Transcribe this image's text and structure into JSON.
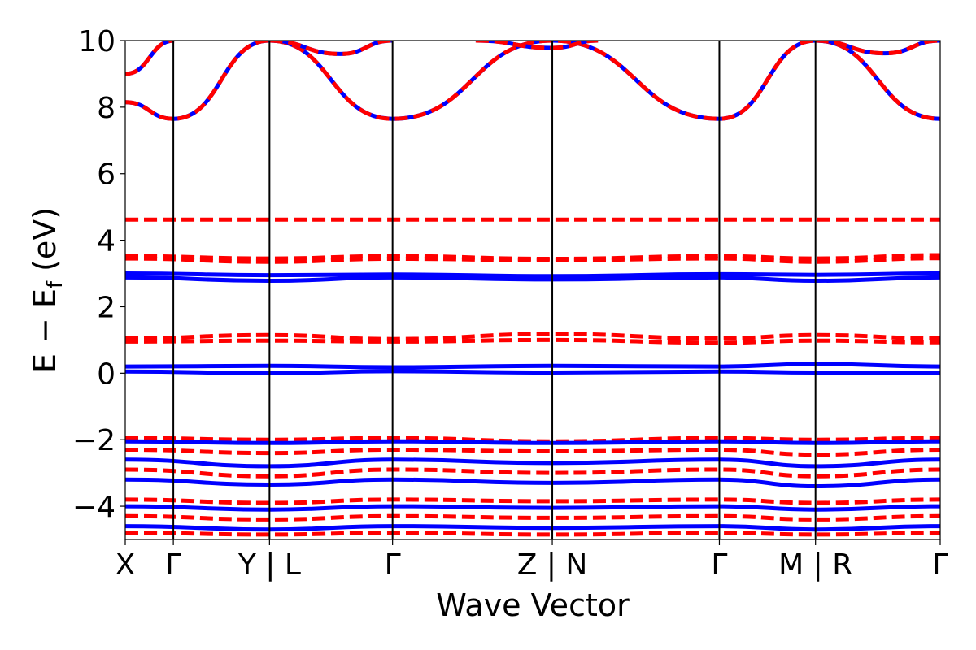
{
  "chart_data": {
    "type": "line",
    "xlabel": "Wave Vector",
    "ylabel": "E − E_f (eV)",
    "ylabel_parts": {
      "pre": "E − E",
      "sub": "f",
      "post": " (eV)"
    },
    "ylim": [
      -5,
      10
    ],
    "yticks": [
      {
        "value": -4,
        "label": "−4"
      },
      {
        "value": -2,
        "label": "−2"
      },
      {
        "value": 0,
        "label": "0"
      },
      {
        "value": 2,
        "label": "2"
      },
      {
        "value": 4,
        "label": "4"
      },
      {
        "value": 6,
        "label": "6"
      },
      {
        "value": 8,
        "label": "8"
      },
      {
        "value": 10,
        "label": "10"
      }
    ],
    "xlim": [
      0,
      1
    ],
    "kpath": [
      {
        "label": "X",
        "position": 0.0
      },
      {
        "label": "Γ",
        "position": 0.059
      },
      {
        "label": "Y | L",
        "position": 0.177
      },
      {
        "label": "Γ",
        "position": 0.328
      },
      {
        "label": "Z | N",
        "position": 0.524
      },
      {
        "label": "Γ",
        "position": 0.729
      },
      {
        "label": "M | R",
        "position": 0.847
      },
      {
        "label": "Γ",
        "position": 1.0
      }
    ],
    "grid": false,
    "legend": "none",
    "colors": {
      "blue_series": "#0000ff",
      "red_series": "#ff0000"
    },
    "series": [
      {
        "style": "solid",
        "color": "#0000ff",
        "x": [
          0,
          0.059,
          0.177,
          0.328,
          0.524,
          0.729,
          0.847,
          1.0
        ],
        "y": [
          8.15,
          7.65,
          10.0,
          7.65,
          10.0,
          7.65,
          10.0,
          7.65
        ]
      },
      {
        "style": "dashed",
        "color": "#ff0000",
        "x": [
          0,
          0.059,
          0.177,
          0.328,
          0.524,
          0.729,
          0.847,
          1.0
        ],
        "y": [
          8.15,
          7.65,
          10.0,
          7.65,
          10.0,
          7.65,
          10.0,
          7.65
        ]
      },
      {
        "style": "solid",
        "color": "#0000ff",
        "x": [
          0,
          0.06
        ],
        "y": [
          9.0,
          10.0
        ]
      },
      {
        "style": "dashed",
        "color": "#ff0000",
        "x": [
          0,
          0.06
        ],
        "y": [
          9.0,
          10.0
        ]
      },
      {
        "style": "solid",
        "color": "#0000ff",
        "x": [
          0.177,
          0.264,
          0.328
        ],
        "y": [
          10.0,
          9.6,
          10.0
        ]
      },
      {
        "style": "dashed",
        "color": "#ff0000",
        "x": [
          0.177,
          0.264,
          0.328
        ],
        "y": [
          10.0,
          9.6,
          10.0
        ]
      },
      {
        "style": "solid",
        "color": "#0000ff",
        "x": [
          0.43,
          0.524,
          0.58
        ],
        "y": [
          10.0,
          9.78,
          10.0
        ]
      },
      {
        "style": "dashed",
        "color": "#ff0000",
        "x": [
          0.43,
          0.524,
          0.58
        ],
        "y": [
          10.0,
          9.78,
          10.0
        ]
      },
      {
        "style": "solid",
        "color": "#0000ff",
        "x": [
          0.847,
          0.932,
          1.0
        ],
        "y": [
          10.0,
          9.62,
          10.0
        ]
      },
      {
        "style": "dashed",
        "color": "#ff0000",
        "x": [
          0.847,
          0.932,
          1.0
        ],
        "y": [
          10.0,
          9.62,
          10.0
        ]
      },
      {
        "style": "dashed",
        "color": "#ff0000",
        "x": [
          0,
          1.0
        ],
        "y": [
          4.62,
          4.62
        ]
      },
      {
        "style": "dashed",
        "color": "#ff0000",
        "x": [
          0,
          0.177,
          0.328,
          0.524,
          0.729,
          0.847,
          1.0
        ],
        "y": [
          3.52,
          3.45,
          3.52,
          3.44,
          3.52,
          3.45,
          3.55
        ]
      },
      {
        "style": "dashed",
        "color": "#ff0000",
        "x": [
          0,
          0.177,
          0.328,
          0.524,
          0.729,
          0.847,
          1.0
        ],
        "y": [
          3.45,
          3.35,
          3.44,
          3.4,
          3.45,
          3.35,
          3.46
        ]
      },
      {
        "style": "solid",
        "color": "#0000ff",
        "x": [
          0,
          0.177,
          0.328,
          0.524,
          0.729,
          0.847,
          1.0
        ],
        "y": [
          3.0,
          2.95,
          2.97,
          2.92,
          2.98,
          2.96,
          3.0
        ]
      },
      {
        "style": "solid",
        "color": "#0000ff",
        "x": [
          0,
          0.177,
          0.328,
          0.524,
          0.729,
          0.847,
          1.0
        ],
        "y": [
          2.88,
          2.78,
          2.88,
          2.82,
          2.88,
          2.78,
          2.88
        ]
      },
      {
        "style": "dashed",
        "color": "#ff0000",
        "x": [
          0,
          0.177,
          0.328,
          0.524,
          0.729,
          0.847,
          1.0
        ],
        "y": [
          1.05,
          1.15,
          1.03,
          1.18,
          1.05,
          1.15,
          1.05
        ]
      },
      {
        "style": "dashed",
        "color": "#ff0000",
        "x": [
          0,
          0.177,
          0.328,
          0.524,
          0.729,
          0.847,
          1.0
        ],
        "y": [
          0.95,
          0.98,
          0.95,
          1.0,
          0.92,
          0.98,
          0.93
        ]
      },
      {
        "style": "solid",
        "color": "#0000ff",
        "x": [
          0,
          0.177,
          0.328,
          0.524,
          0.729,
          0.847,
          1.0
        ],
        "y": [
          0.2,
          0.22,
          0.18,
          0.22,
          0.2,
          0.28,
          0.2
        ]
      },
      {
        "style": "solid",
        "color": "#0000ff",
        "x": [
          0,
          0.177,
          0.328,
          0.524,
          0.729,
          0.847,
          1.0
        ],
        "y": [
          0.05,
          0.0,
          0.06,
          0.02,
          0.05,
          0.02,
          0.0
        ]
      },
      {
        "style": "dashed",
        "color": "#ff0000",
        "x": [
          0,
          0.177,
          0.328,
          0.524,
          0.729,
          0.847,
          1.0
        ],
        "y": [
          -1.95,
          -2.0,
          -1.95,
          -2.05,
          -1.95,
          -2.0,
          -1.95
        ]
      },
      {
        "style": "solid",
        "color": "#0000ff",
        "x": [
          0,
          0.177,
          0.328,
          0.524,
          0.729,
          0.847,
          1.0
        ],
        "y": [
          -2.05,
          -2.1,
          -2.05,
          -2.1,
          -2.05,
          -2.1,
          -2.05
        ]
      },
      {
        "style": "dashed",
        "color": "#ff0000",
        "x": [
          0,
          0.177,
          0.328,
          0.524,
          0.729,
          0.847,
          1.0
        ],
        "y": [
          -2.3,
          -2.4,
          -2.3,
          -2.35,
          -2.3,
          -2.45,
          -2.3
        ]
      },
      {
        "style": "solid",
        "color": "#0000ff",
        "x": [
          0,
          0.177,
          0.328,
          0.524,
          0.729,
          0.847,
          1.0
        ],
        "y": [
          -2.6,
          -2.8,
          -2.6,
          -2.7,
          -2.6,
          -2.8,
          -2.6
        ]
      },
      {
        "style": "dashed",
        "color": "#ff0000",
        "x": [
          0,
          0.177,
          0.328,
          0.524,
          0.729,
          0.847,
          1.0
        ],
        "y": [
          -2.9,
          -3.1,
          -2.9,
          -3.0,
          -2.9,
          -3.1,
          -2.9
        ]
      },
      {
        "style": "solid",
        "color": "#0000ff",
        "x": [
          0,
          0.177,
          0.328,
          0.524,
          0.729,
          0.847,
          1.0
        ],
        "y": [
          -3.2,
          -3.35,
          -3.2,
          -3.3,
          -3.2,
          -3.4,
          -3.2
        ]
      },
      {
        "style": "dashed",
        "color": "#ff0000",
        "x": [
          0,
          0.177,
          0.328,
          0.524,
          0.729,
          0.847,
          1.0
        ],
        "y": [
          -3.8,
          -3.9,
          -3.8,
          -3.85,
          -3.8,
          -3.9,
          -3.8
        ]
      },
      {
        "style": "solid",
        "color": "#0000ff",
        "x": [
          0,
          0.177,
          0.328,
          0.524,
          0.729,
          0.847,
          1.0
        ],
        "y": [
          -4.0,
          -4.1,
          -4.0,
          -4.05,
          -4.0,
          -4.1,
          -4.0
        ]
      },
      {
        "style": "dashed",
        "color": "#ff0000",
        "x": [
          0,
          0.177,
          0.328,
          0.524,
          0.729,
          0.847,
          1.0
        ],
        "y": [
          -4.3,
          -4.4,
          -4.3,
          -4.35,
          -4.3,
          -4.4,
          -4.3
        ]
      },
      {
        "style": "solid",
        "color": "#0000ff",
        "x": [
          0,
          0.177,
          0.328,
          0.524,
          0.729,
          0.847,
          1.0
        ],
        "y": [
          -4.6,
          -4.7,
          -4.6,
          -4.65,
          -4.6,
          -4.7,
          -4.6
        ]
      },
      {
        "style": "dashed",
        "color": "#ff0000",
        "x": [
          0,
          0.177,
          0.328,
          0.524,
          0.729,
          0.847,
          1.0
        ],
        "y": [
          -4.8,
          -4.85,
          -4.8,
          -4.85,
          -4.8,
          -4.85,
          -4.8
        ]
      }
    ]
  }
}
